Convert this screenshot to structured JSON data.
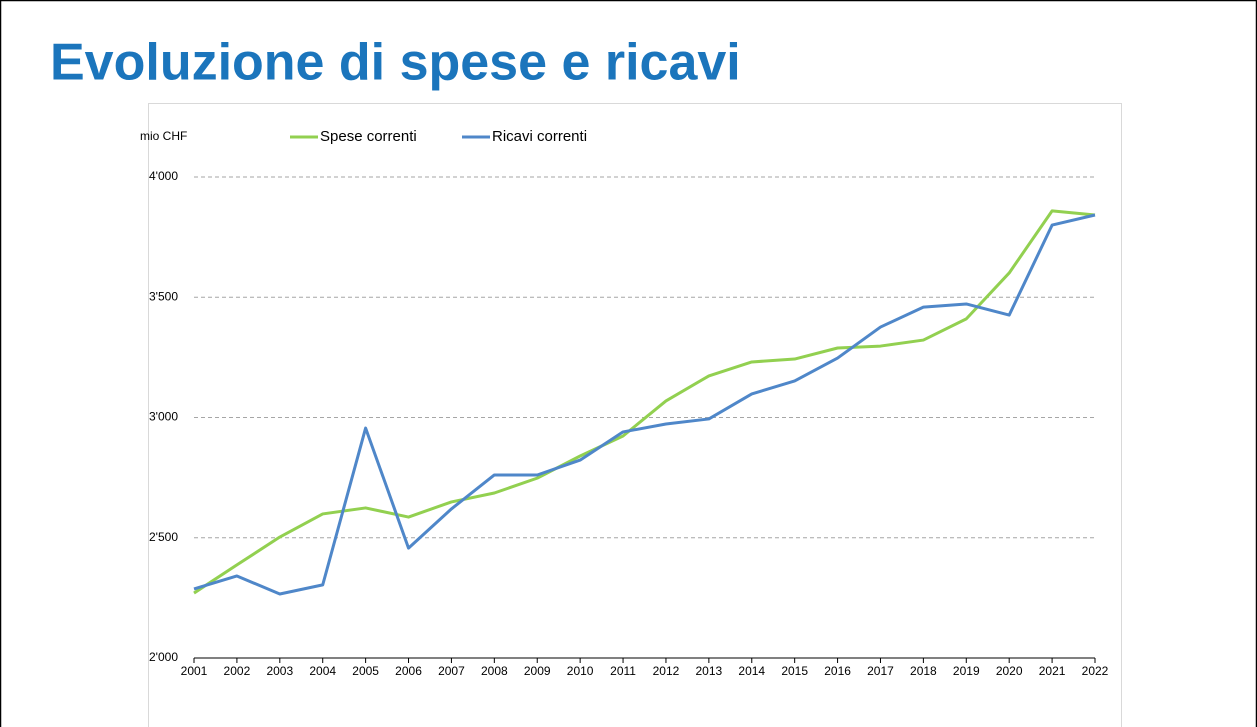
{
  "title": "Evoluzione di spese e ricavi",
  "chart_data": {
    "type": "line",
    "y_label": "mio CHF",
    "categories": [
      "2001",
      "2002",
      "2003",
      "2004",
      "2005",
      "2006",
      "2007",
      "2008",
      "2009",
      "2010",
      "2011",
      "2012",
      "2013",
      "2014",
      "2015",
      "2016",
      "2017",
      "2018",
      "2019",
      "2020",
      "2021",
      "2022"
    ],
    "series": [
      {
        "name": "Spese correnti",
        "color": "#92d050",
        "values": [
          2270,
          2387,
          2503,
          2599,
          2624,
          2586,
          2649,
          2686,
          2748,
          2840,
          2923,
          3069,
          3173,
          3231,
          3243,
          3289,
          3297,
          3322,
          3410,
          3601,
          3859,
          3842
        ]
      },
      {
        "name": "Ricavi correnti",
        "color": "#4f87c9",
        "values": [
          2287,
          2341,
          2266,
          2304,
          2956,
          2457,
          2620,
          2761,
          2761,
          2823,
          2940,
          2973,
          2994,
          3098,
          3152,
          3247,
          3376,
          3459,
          3472,
          3426,
          3800,
          3842
        ]
      }
    ],
    "ylim": [
      2000,
      4000
    ],
    "yticks": [
      {
        "value": 2000,
        "label": "2'000"
      },
      {
        "value": 2500,
        "label": "2'500"
      },
      {
        "value": 3000,
        "label": "3'000"
      },
      {
        "value": 3500,
        "label": "3'500"
      },
      {
        "value": 4000,
        "label": "4'000"
      }
    ],
    "grid": true,
    "legend": "top"
  }
}
